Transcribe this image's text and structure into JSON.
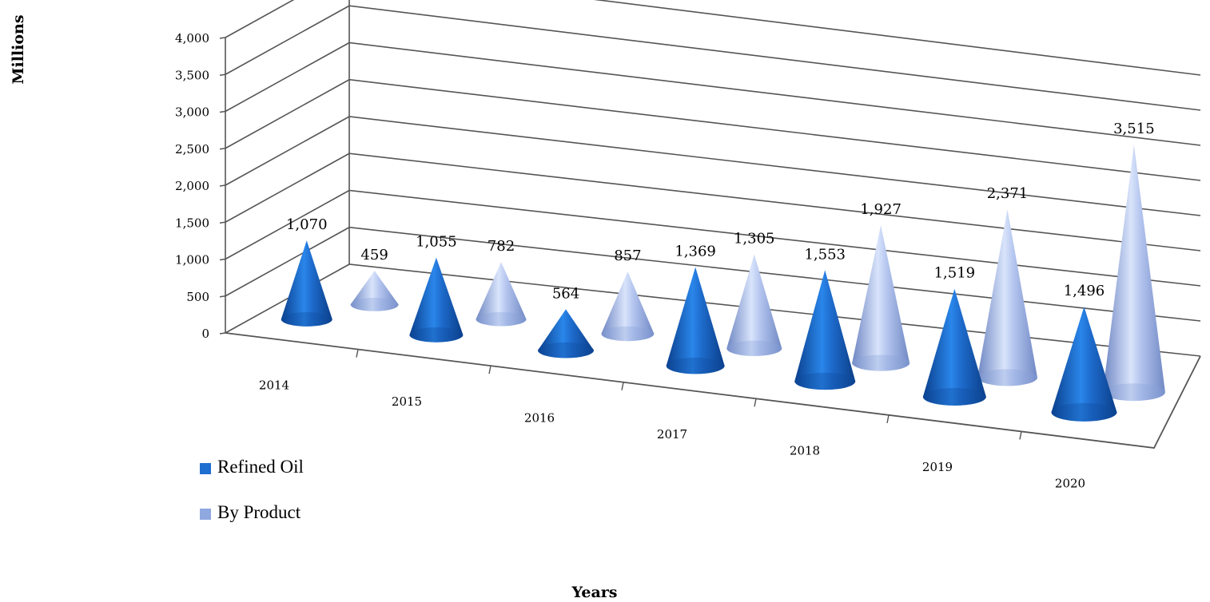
{
  "chart_data": {
    "type": "bar",
    "style": "3d-cone",
    "categories": [
      "2014",
      "2015",
      "2016",
      "2017",
      "2018",
      "2019",
      "2020"
    ],
    "series": [
      {
        "name": "Refined Oil",
        "values": [
          1070,
          1055,
          564,
          1369,
          1553,
          1519,
          1496
        ],
        "labels": [
          "1,070",
          "1,055",
          "564",
          "1,369",
          "1,553",
          "1,519",
          "1,496"
        ],
        "color": "#1f6fd0"
      },
      {
        "name": "By Product",
        "values": [
          459,
          782,
          857,
          1305,
          1927,
          2371,
          3515
        ],
        "labels": [
          "459",
          "782",
          "857",
          "1,305",
          "1,927",
          "2,371",
          "3,515"
        ],
        "color": "#8fa8e0"
      }
    ],
    "ylabel": "Millions",
    "xlabel": "Years",
    "ylim": [
      0,
      4000
    ],
    "yticks": [
      0,
      500,
      1000,
      1500,
      2000,
      2500,
      3000,
      3500,
      4000
    ],
    "ytick_labels": [
      "0",
      "500",
      "1,000",
      "1,500",
      "2,000",
      "2,500",
      "3,000",
      "3,500",
      "4,000"
    ],
    "grid": true,
    "legend_position": "bottom-left"
  }
}
